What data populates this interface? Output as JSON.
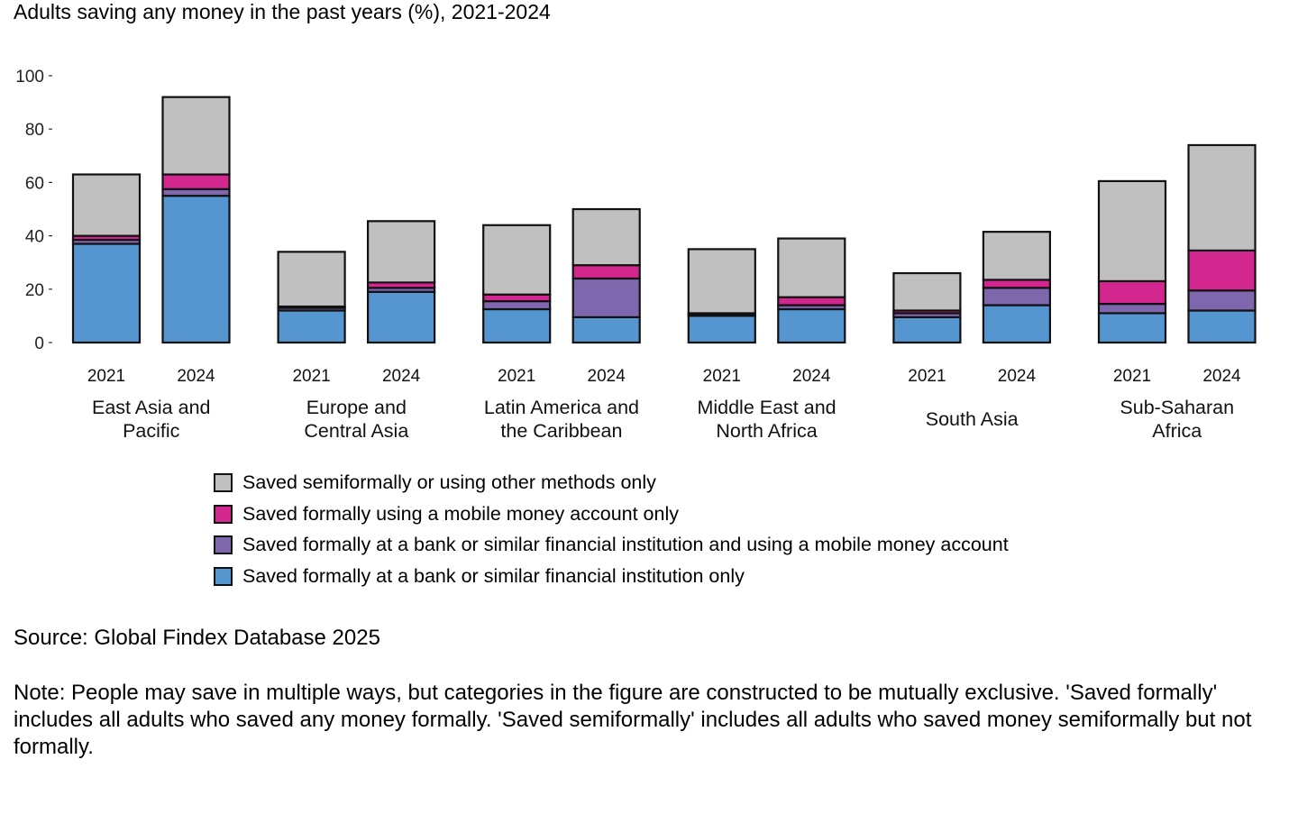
{
  "chart_data": {
    "type": "bar",
    "stacked": true,
    "title": "Adults saving any money in the past years (%), 2021-2024",
    "xlabel": "",
    "ylabel": "",
    "ylim": [
      0,
      100
    ],
    "yticks": [
      0,
      20,
      40,
      60,
      80,
      100
    ],
    "grid": false,
    "legend_position": "bottom",
    "groups": [
      {
        "label": "East Asia and Pacific",
        "label_lines": [
          "East Asia and",
          "Pacific"
        ]
      },
      {
        "label": "Europe and Central Asia",
        "label_lines": [
          "Europe and",
          "Central Asia"
        ]
      },
      {
        "label": "Latin America and the Caribbean",
        "label_lines": [
          "Latin America and",
          "the Caribbean"
        ]
      },
      {
        "label": "Middle East and North Africa",
        "label_lines": [
          "Middle East and",
          "North Africa"
        ]
      },
      {
        "label": "South Asia",
        "label_lines": [
          "South Asia"
        ]
      },
      {
        "label": "Sub-Saharan Africa",
        "label_lines": [
          "Sub-Saharan",
          "Africa"
        ]
      }
    ],
    "years": [
      "2021",
      "2024"
    ],
    "series": [
      {
        "name": "Saved formally at a bank or similar financial institution only",
        "color": "#5595D0",
        "values": [
          [
            37,
            55
          ],
          [
            12,
            19
          ],
          [
            12.5,
            9.5
          ],
          [
            10,
            12.5
          ],
          [
            9.5,
            14
          ],
          [
            11,
            12
          ]
        ]
      },
      {
        "name": "Saved formally at a bank or similar financial institution and using a mobile money account",
        "color": "#7F67AE",
        "values": [
          [
            1.5,
            2.5
          ],
          [
            1,
            1.5
          ],
          [
            3,
            14.5
          ],
          [
            0.5,
            1.5
          ],
          [
            1.5,
            6.5
          ],
          [
            3.5,
            7.5
          ]
        ]
      },
      {
        "name": "Saved formally using a mobile money account only",
        "color": "#D3278F",
        "values": [
          [
            1.5,
            5.5
          ],
          [
            0.5,
            2
          ],
          [
            2.5,
            5
          ],
          [
            0.5,
            3
          ],
          [
            1,
            3
          ],
          [
            8.5,
            15
          ]
        ]
      },
      {
        "name": "Saved semiformally or using other methods only",
        "color": "#C1C0C1",
        "values": [
          [
            23,
            29
          ],
          [
            20.5,
            23
          ],
          [
            26,
            21
          ],
          [
            24,
            22
          ],
          [
            14,
            18
          ],
          [
            37.5,
            39.5
          ]
        ]
      }
    ]
  },
  "legend": {
    "items": [
      {
        "label": "Saved semiformally or using other methods only",
        "color": "#C1C0C1"
      },
      {
        "label": "Saved formally using a mobile money account only",
        "color": "#D3278F"
      },
      {
        "label": "Saved formally at a bank or similar financial institution and using a mobile money account",
        "color": "#7F67AE"
      },
      {
        "label": "Saved formally at a bank or similar financial institution only",
        "color": "#5595D0"
      }
    ]
  },
  "source": "Source: Global Findex Database 2025",
  "note": "Note: People may save in multiple ways, but categories in the figure are constructed to be mutually exclusive. 'Saved formally' includes all adults who saved any money formally. 'Saved semiformally' includes all adults who saved money semiformally but not formally."
}
